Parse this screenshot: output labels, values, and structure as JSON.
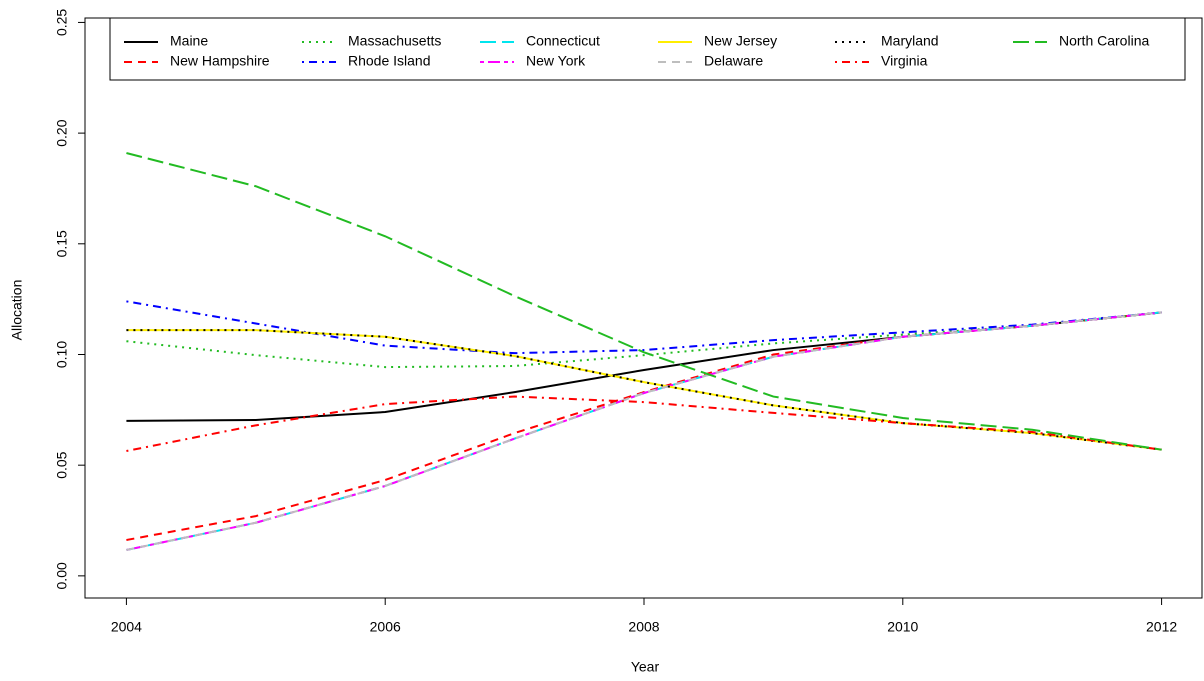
{
  "chart_data": {
    "type": "line",
    "x_label": "Year",
    "y_label": "Allocation",
    "x": [
      2004,
      2005,
      2006,
      2007,
      2008,
      2009,
      2010,
      2011,
      2012
    ],
    "xlim": [
      2003.68,
      2012.32
    ],
    "xticks": [
      2004,
      2006,
      2008,
      2010,
      2012
    ],
    "ylim": [
      -0.01,
      0.252
    ],
    "yticks": [
      {
        "value": 0,
        "label": "0.00"
      },
      0.05,
      {
        "value": 0.1,
        "label": "0.10"
      },
      0.15,
      {
        "value": 0.2,
        "label": "0.20"
      },
      0.25
    ],
    "legend": "top",
    "series": [
      {
        "name": "Maine",
        "color": "#000000",
        "line_style": "solid",
        "values": [
          0.07,
          0.0704,
          0.074,
          0.083,
          0.093,
          0.102,
          0.108,
          0.113,
          0.119
        ]
      },
      {
        "name": "New Hampshire",
        "color": "#ff0000",
        "line_style": "dashed",
        "values": [
          0.0162,
          0.027,
          0.0433,
          0.0645,
          0.083,
          0.1,
          0.108,
          0.113,
          0.119
        ]
      },
      {
        "name": "Massachusetts",
        "color": "#22bb22",
        "line_style": "dotted",
        "values": [
          0.106,
          0.0997,
          0.0943,
          0.0948,
          0.0997,
          0.105,
          0.109,
          0.113,
          0.119
        ]
      },
      {
        "name": "Rhode Island",
        "color": "#0000ff",
        "line_style": "dotdash",
        "values": [
          0.124,
          0.114,
          0.104,
          0.1006,
          0.102,
          0.1065,
          0.11,
          0.1135,
          0.119
        ]
      },
      {
        "name": "Connecticut",
        "color": "#00e5ee",
        "line_style": "longdash",
        "values": [
          0.0117,
          0.024,
          0.0406,
          0.062,
          0.0826,
          0.099,
          0.108,
          0.113,
          0.119
        ]
      },
      {
        "name": "New York",
        "color": "#ff00ff",
        "line_style": "twodash",
        "values": [
          0.0117,
          0.024,
          0.0406,
          0.062,
          0.0826,
          0.099,
          0.108,
          0.113,
          0.119
        ]
      },
      {
        "name": "New Jersey",
        "color": "#ffee00",
        "line_style": "solid",
        "values": [
          0.111,
          0.111,
          0.108,
          0.0993,
          0.0875,
          0.077,
          0.069,
          0.0645,
          0.057
        ]
      },
      {
        "name": "Delaware",
        "color": "#bebebe",
        "line_style": "dashed",
        "values": [
          0.0117,
          0.024,
          0.0406,
          0.062,
          0.0826,
          0.099,
          0.108,
          0.113,
          0.119
        ]
      },
      {
        "name": "Maryland",
        "color": "#000000",
        "line_style": "dotted",
        "values": [
          0.111,
          0.111,
          0.108,
          0.0993,
          0.0875,
          0.077,
          0.069,
          0.0645,
          0.057
        ]
      },
      {
        "name": "Virginia",
        "color": "#ff0000",
        "line_style": "dotdash",
        "values": [
          0.0564,
          0.068,
          0.0776,
          0.081,
          0.0785,
          0.0736,
          0.069,
          0.065,
          0.057
        ]
      },
      {
        "name": "North Carolina",
        "color": "#22bb22",
        "line_style": "longdash",
        "values": [
          0.191,
          0.176,
          0.1534,
          0.1264,
          0.101,
          0.081,
          0.0713,
          0.066,
          0.057
        ]
      }
    ]
  }
}
